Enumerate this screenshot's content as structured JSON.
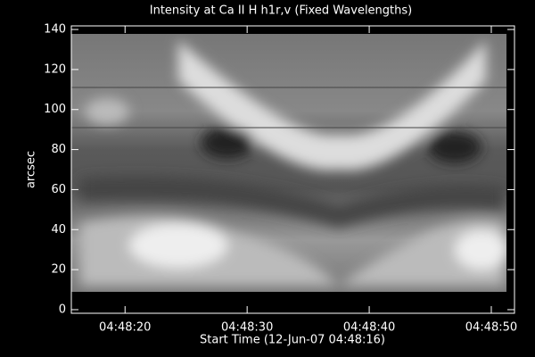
{
  "chart_data": {
    "type": "image",
    "title": "Intensity at Ca II H h1r,v (Fixed Wavelengths)",
    "x_label": "Start Time (12-Jun-07 04:48:16)",
    "y_label": "arcsec",
    "xlim": [
      -0.4,
      35.9
    ],
    "xticks": [
      {
        "value": 4,
        "label": "04:48:20"
      },
      {
        "value": 14,
        "label": "04:48:30"
      },
      {
        "value": 24,
        "label": "04:48:40"
      },
      {
        "value": 34,
        "label": "04:48:50"
      }
    ],
    "ylim": [
      -1.8,
      141.8
    ],
    "yticks": [
      0,
      20,
      40,
      60,
      80,
      100,
      120,
      140
    ],
    "colormap": "gray"
  }
}
